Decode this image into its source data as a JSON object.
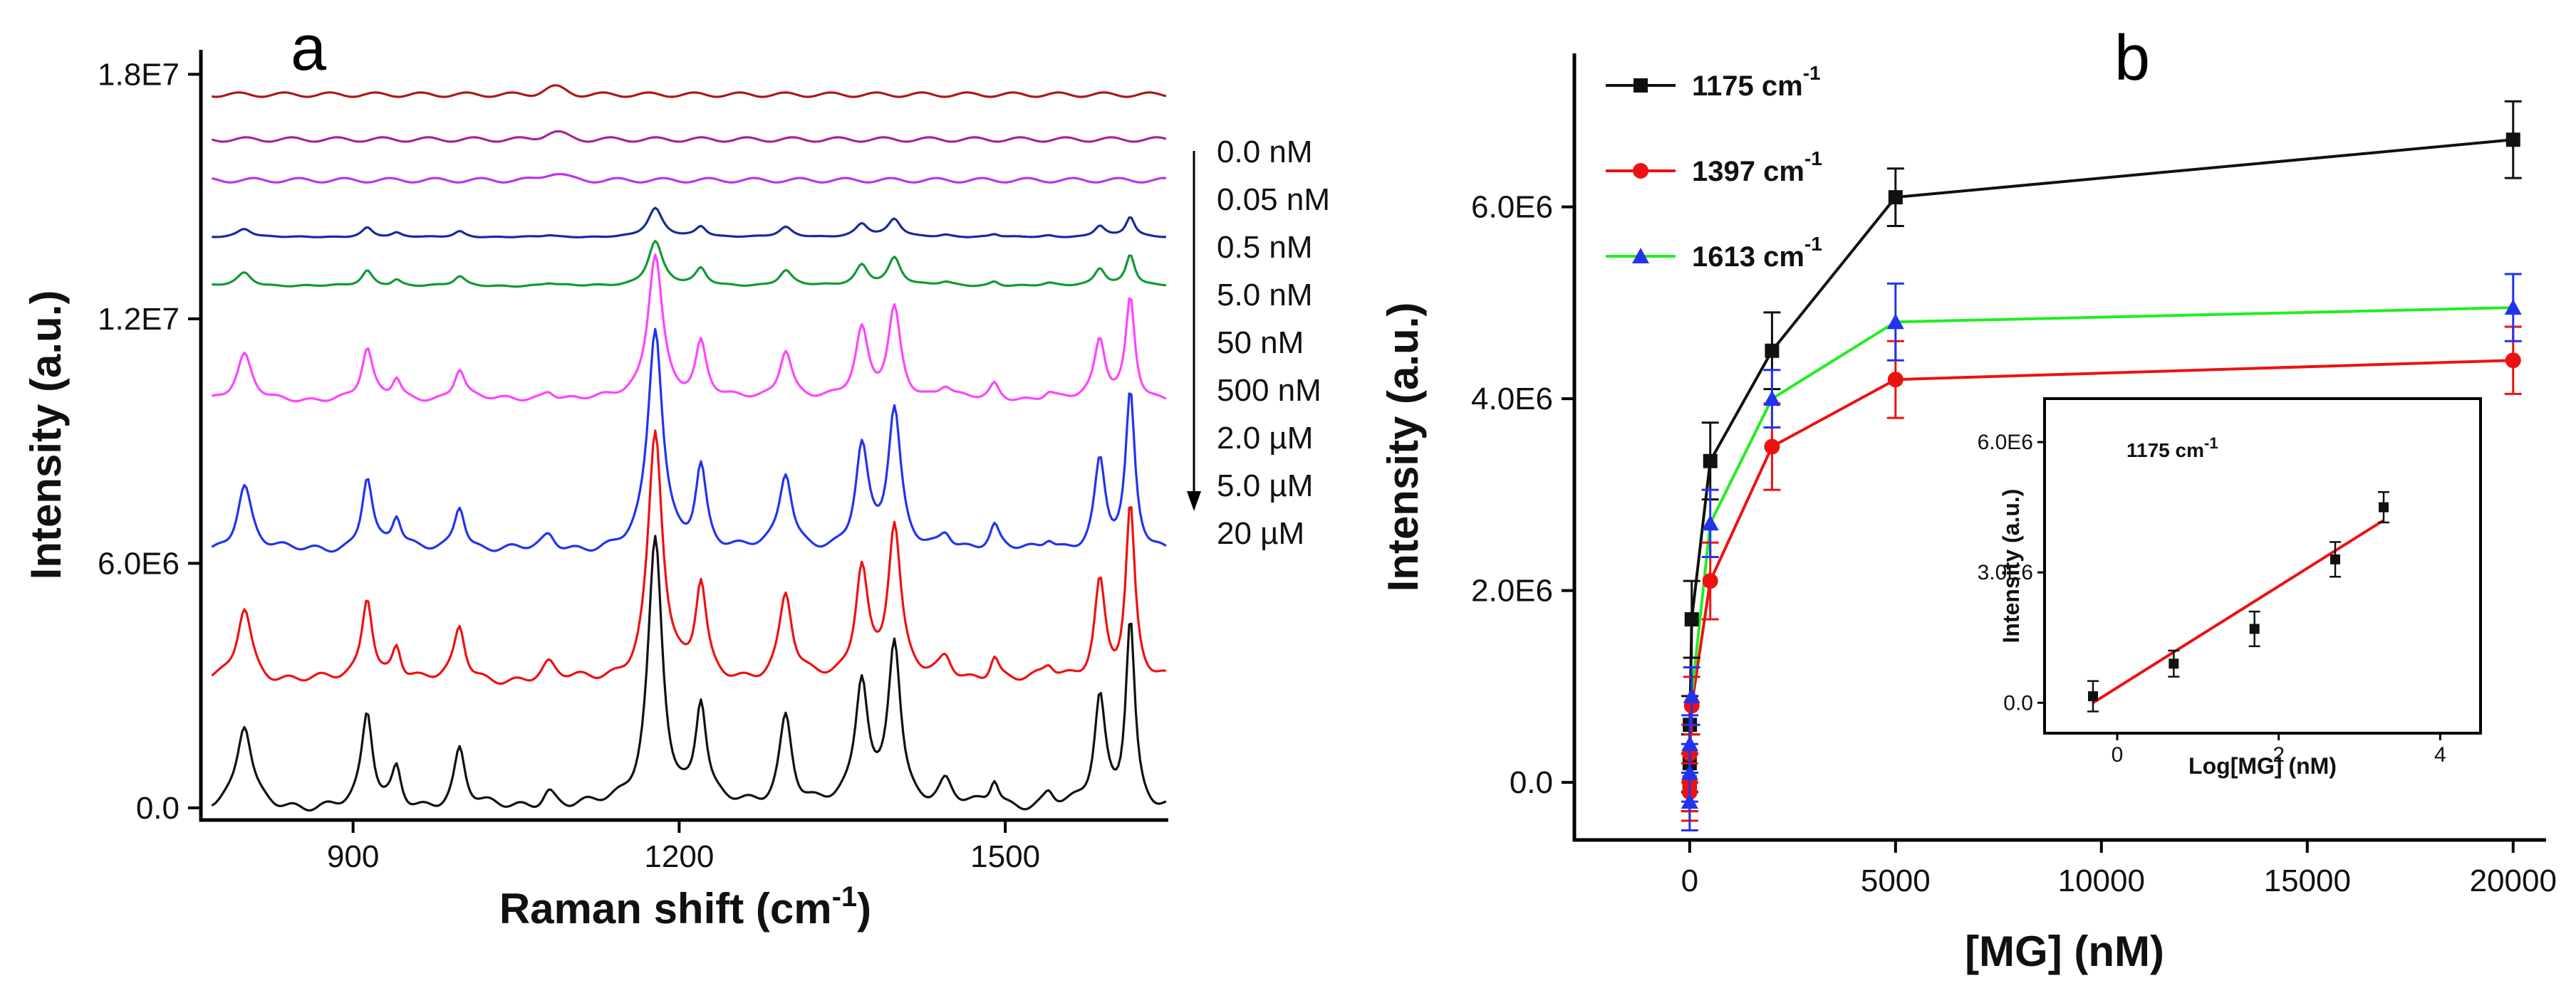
{
  "chart_data": [
    {
      "type": "line",
      "panel": "a",
      "title": "",
      "xlabel": "Raman shift (cm",
      "xlabel_sup": "-1",
      "xlabel_close": ")",
      "ylabel": "Intensity (a.u.)",
      "xlim": [
        760,
        1650
      ],
      "ylim": [
        -300000,
        18600000
      ],
      "xticks": [
        900,
        1200,
        1500
      ],
      "xtick_labels": [
        "900",
        "1200",
        "1500"
      ],
      "yticks": [
        0,
        6000000,
        12000000,
        18000000
      ],
      "ytick_labels": [
        "0.0",
        "6.0E6",
        "1.2E7",
        "1.8E7"
      ],
      "peaks": [
        {
          "center": 800,
          "width": 8,
          "weight": 0.3
        },
        {
          "center": 913,
          "width": 6,
          "weight": 0.34
        },
        {
          "center": 940,
          "width": 5,
          "weight": 0.14
        },
        {
          "center": 998,
          "width": 6,
          "weight": 0.21
        },
        {
          "center": 1080,
          "width": 7,
          "weight": 0.06
        },
        {
          "center": 1178,
          "width": 8,
          "weight": 1.0
        },
        {
          "center": 1220,
          "width": 6,
          "weight": 0.37
        },
        {
          "center": 1298,
          "width": 7,
          "weight": 0.34
        },
        {
          "center": 1368,
          "width": 7,
          "weight": 0.46
        },
        {
          "center": 1398,
          "width": 7,
          "weight": 0.62
        },
        {
          "center": 1445,
          "width": 7,
          "weight": 0.08
        },
        {
          "center": 1490,
          "width": 5,
          "weight": 0.1
        },
        {
          "center": 1540,
          "width": 6,
          "weight": 0.05
        },
        {
          "center": 1587,
          "width": 6,
          "weight": 0.4
        },
        {
          "center": 1615,
          "width": 5,
          "weight": 0.7
        }
      ],
      "series": [
        {
          "name": "20 µM",
          "color": "#111111",
          "offset": 0,
          "scale": 6600000
        },
        {
          "name": "5.0 µM",
          "color": "#ee1111",
          "offset": 3100000,
          "scale": 6100000
        },
        {
          "name": "2.0 µM",
          "color": "#2233ee",
          "offset": 6300000,
          "scale": 5400000
        },
        {
          "name": "500 nM",
          "color": "#ff44ff",
          "offset": 10000000,
          "scale": 3600000
        },
        {
          "name": "50 nM",
          "color": "#119933",
          "offset": 12800000,
          "scale": 1100000
        },
        {
          "name": "5.0 nM",
          "color": "#1a2a9a",
          "offset": 14000000,
          "scale": 700000
        },
        {
          "name": "0.5 nM",
          "color": "#bb33ee",
          "offset": 15400000,
          "scale": 0
        },
        {
          "name": "0.05 nM",
          "color": "#aa2299",
          "offset": 16400000,
          "scale": 0
        },
        {
          "name": "0.0 nM",
          "color": "#aa1a1a",
          "offset": 17500000,
          "scale": 0
        }
      ],
      "concentration_legend": [
        "0.0 nM",
        "0.05 nM",
        "0.5 nM",
        "5.0 nM",
        "50 nM",
        "500 nM",
        "2.0 µM",
        "5.0 µM",
        "20 µM"
      ]
    },
    {
      "type": "line",
      "panel": "b",
      "title": "",
      "xlabel": "[MG] (nM)",
      "ylabel": "Intensity (a.u.)",
      "xlim": [
        -2800,
        20800
      ],
      "ylim": [
        -600000,
        7600000
      ],
      "xticks": [
        0,
        5000,
        10000,
        15000,
        20000
      ],
      "xtick_labels": [
        "0",
        "5000",
        "10000",
        "15000",
        "20000"
      ],
      "yticks": [
        0,
        2000000,
        4000000,
        6000000
      ],
      "ytick_labels": [
        "0.0",
        "2.0E6",
        "4.0E6",
        "6.0E6"
      ],
      "x": [
        0.05,
        0.5,
        5,
        50,
        500,
        2000,
        5000,
        20000
      ],
      "series": [
        {
          "name": "1175 cm",
          "sup": "-1",
          "color": "#111111",
          "marker": "square",
          "values": [
            0,
            200000,
            600000,
            1700000,
            3350000,
            4500000,
            6100000,
            6700000
          ],
          "errors": [
            300000,
            300000,
            300000,
            400000,
            400000,
            400000,
            300000,
            400000
          ]
        },
        {
          "name": "1397 cm",
          "sup": "-1",
          "color": "#ee1111",
          "marker": "circle",
          "values": [
            -100000,
            0,
            300000,
            800000,
            2100000,
            3500000,
            4200000,
            4400000
          ],
          "errors": [
            300000,
            300000,
            300000,
            300000,
            400000,
            450000,
            400000,
            350000
          ],
          "extra_x": [
            300
          ],
          "extra_values": [
            2700000
          ]
        },
        {
          "name": "1613 cm",
          "sup": "-1",
          "color": "#2233ee",
          "marker": "triangle",
          "values": [
            -200000,
            100000,
            400000,
            900000,
            2700000,
            4000000,
            4800000,
            4950000
          ],
          "errors": [
            300000,
            300000,
            300000,
            300000,
            350000,
            300000,
            400000,
            350000
          ],
          "line_color": "#22ee22"
        }
      ],
      "inset": {
        "title": "1175 cm",
        "title_sup": "-1",
        "xlabel": "Log[MG] (nM)",
        "ylabel": "Intensity (a.u.)",
        "xlim": [
          -0.9,
          4.5
        ],
        "ylim": [
          -700000,
          7000000
        ],
        "xticks": [
          0,
          2,
          4
        ],
        "xtick_labels": [
          "0",
          "2",
          "4"
        ],
        "yticks": [
          0,
          3000000,
          6000000
        ],
        "ytick_labels": [
          "0.0",
          "3.0E6",
          "6.0E6"
        ],
        "x": [
          -0.3,
          0.7,
          1.7,
          2.7,
          3.3
        ],
        "values": [
          150000,
          900000,
          1700000,
          3300000,
          4500000
        ],
        "errors": [
          350000,
          300000,
          400000,
          400000,
          350000
        ],
        "fit": {
          "x": [
            -0.3,
            3.3
          ],
          "y": [
            0,
            4200000
          ],
          "color": "#ee1111"
        }
      }
    }
  ],
  "panel_labels": {
    "a": "a",
    "b": "b"
  }
}
